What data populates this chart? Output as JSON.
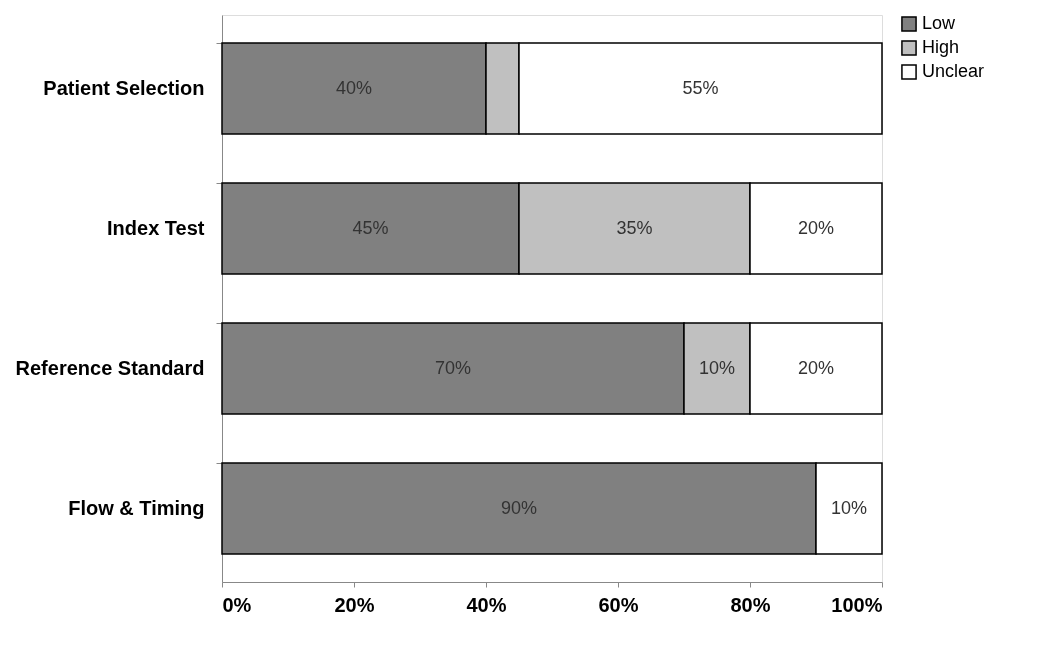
{
  "chart_data": {
    "type": "bar",
    "orientation": "horizontal",
    "stacked": true,
    "categories": [
      "Patient Selection",
      "Index Test",
      "Reference Standard",
      "Flow & Timing"
    ],
    "series": [
      {
        "name": "Low",
        "color": "#808080",
        "values": [
          40,
          45,
          70,
          90
        ],
        "value_labels": [
          "40%",
          "45%",
          "70%",
          "90%"
        ]
      },
      {
        "name": "High",
        "color": "#c0c0c0",
        "values": [
          5,
          35,
          10,
          null
        ],
        "value_labels": [
          null,
          "35%",
          "10%",
          null
        ]
      },
      {
        "name": "Unclear",
        "color": "#ffffff",
        "values": [
          55,
          20,
          20,
          10
        ],
        "value_labels": [
          "55%",
          "20%",
          "20%",
          "10%"
        ]
      }
    ],
    "xlim": [
      0,
      100
    ],
    "xticks": [
      {
        "value": 0,
        "label": "0%"
      },
      {
        "value": 20,
        "label": "20%"
      },
      {
        "value": 40,
        "label": "40%"
      },
      {
        "value": 60,
        "label": "60%"
      },
      {
        "value": 80,
        "label": "80%"
      },
      {
        "value": 100,
        "label": "100%"
      }
    ],
    "grid": false,
    "legend": "right"
  }
}
